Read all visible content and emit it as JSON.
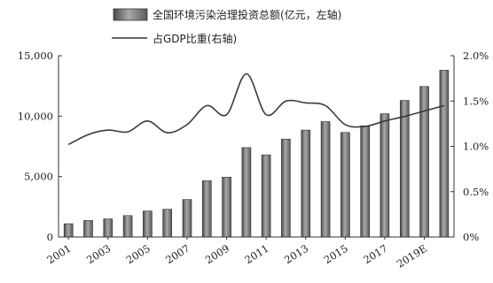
{
  "chart_data": {
    "type": "bar",
    "categories": [
      "2001",
      "2002",
      "2003",
      "2004",
      "2005",
      "2006",
      "2007",
      "2008",
      "2009",
      "2010",
      "2011",
      "2012",
      "2013",
      "2014",
      "2015",
      "2016",
      "2017",
      "2018",
      "2019E",
      "2020E"
    ],
    "x_tick_labels": [
      "2001",
      "2003",
      "2005",
      "2007",
      "2009",
      "2011",
      "2013",
      "2015",
      "2017",
      "2019E"
    ],
    "series": [
      {
        "name": "全国环境污染治理投资总额(亿元，左轴)",
        "type": "bar",
        "axis": "left",
        "values": [
          1100,
          1370,
          1500,
          1770,
          2150,
          2300,
          3100,
          4650,
          4950,
          7400,
          6800,
          8100,
          8850,
          9550,
          8650,
          9200,
          10200,
          11300,
          12450,
          13800
        ]
      },
      {
        "name": "占GDP比重(右轴)",
        "type": "line",
        "axis": "right",
        "values": [
          1.02,
          1.13,
          1.18,
          1.16,
          1.28,
          1.15,
          1.24,
          1.45,
          1.35,
          1.8,
          1.35,
          1.5,
          1.48,
          1.45,
          1.24,
          1.22,
          1.28,
          1.33,
          1.39,
          1.45
        ]
      }
    ],
    "y_left": {
      "min": 0,
      "max": 15000,
      "ticks": [
        0,
        5000,
        10000,
        15000
      ],
      "tick_labels": [
        "0",
        "5,000",
        "10,000",
        "15,000"
      ]
    },
    "y_right": {
      "min": 0,
      "max": 2.0,
      "ticks": [
        0,
        0.5,
        1.0,
        1.5,
        2.0
      ],
      "tick_labels": [
        "0%",
        "0.5%",
        "1.0%",
        "1.5%",
        "2.0%"
      ]
    },
    "legend_position": "top",
    "grid": false
  }
}
